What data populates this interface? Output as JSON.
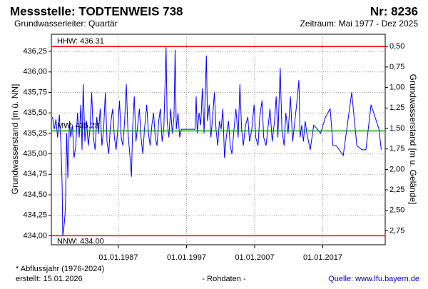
{
  "chart_data": {
    "type": "line",
    "title": "Messstelle: TODTENWEIS 738",
    "number": "Nr: 8236",
    "subtitle": "Grundwasserleiter: Quartär",
    "period": "Zeitraum: Mai 1977 - Dez 2025",
    "ylabel": "Grundwasserstand [m ü. NN]",
    "y2label": "Grundwasserstand [m u. Gelände]",
    "footnote": "* Abflussjahr (1976-2024)",
    "created": "erstellt:  15.01.2026",
    "note": "- Rohdaten -",
    "source": "Quelle:  www.lfu.bayern.de",
    "xlim": [
      "1977-03",
      "2026-03"
    ],
    "xticks": [
      {
        "value": "1987-01-01",
        "label": "01.01.1987"
      },
      {
        "value": "1997-01-01",
        "label": "01.01.1997"
      },
      {
        "value": "2007-01-01",
        "label": "01.01.2007"
      },
      {
        "value": "2017-01-01",
        "label": "01.01.2017"
      }
    ],
    "ylim": [
      433.89,
      436.46
    ],
    "yticks": [
      {
        "value": 434.0,
        "label": "434,00"
      },
      {
        "value": 434.25,
        "label": "434,25"
      },
      {
        "value": 434.5,
        "label": "434,50"
      },
      {
        "value": 434.75,
        "label": "434,75"
      },
      {
        "value": 435.0,
        "label": "435,00"
      },
      {
        "value": 435.25,
        "label": "435,25"
      },
      {
        "value": 435.5,
        "label": "435,50"
      },
      {
        "value": 435.75,
        "label": "435,75"
      },
      {
        "value": 436.0,
        "label": "436,00"
      },
      {
        "value": 436.25,
        "label": "436,25"
      }
    ],
    "y2lim": [
      2.92,
      0.35
    ],
    "y2ticks": [
      {
        "value": 0.5,
        "label": "0,50"
      },
      {
        "value": 0.75,
        "label": "0,75"
      },
      {
        "value": 1.0,
        "label": "1,00"
      },
      {
        "value": 1.25,
        "label": "1,25"
      },
      {
        "value": 1.5,
        "label": "1,50"
      },
      {
        "value": 1.75,
        "label": "1,75"
      },
      {
        "value": 2.0,
        "label": "2,00"
      },
      {
        "value": 2.25,
        "label": "2,25"
      },
      {
        "value": 2.5,
        "label": "2,50"
      },
      {
        "value": 2.75,
        "label": "2,75"
      }
    ],
    "grid": true,
    "reference_lines": [
      {
        "label": "HHW: 436.31",
        "value": 436.31,
        "color": "#ff0000"
      },
      {
        "label": "MW: 435.28",
        "value": 435.28,
        "color": "#00a000"
      },
      {
        "label": "NNW: 434.00",
        "value": 434.0,
        "color": "#ff0000"
      }
    ],
    "x": [
      "1977-05",
      "1977-08",
      "1977-11",
      "1978-02",
      "1978-05",
      "1978-08",
      "1978-10",
      "1978-11",
      "1979-01",
      "1979-03",
      "1979-04",
      "1979-05",
      "1979-06",
      "1979-08",
      "1979-09",
      "1979-11",
      "1980-01",
      "1980-04",
      "1980-07",
      "1980-10",
      "1981-01",
      "1981-04",
      "1981-07",
      "1981-09",
      "1981-11",
      "1982-02",
      "1982-05",
      "1982-08",
      "1982-11",
      "1983-02",
      "1983-05",
      "1983-08",
      "1983-11",
      "1984-02",
      "1984-05",
      "1984-08",
      "1984-11",
      "1985-02",
      "1985-05",
      "1985-08",
      "1985-11",
      "1986-03",
      "1986-06",
      "1986-09",
      "1986-12",
      "1987-03",
      "1987-06",
      "1987-09",
      "1987-12",
      "1988-03",
      "1988-06",
      "1988-09",
      "1988-12",
      "1989-02",
      "1989-05",
      "1989-08",
      "1989-11",
      "1990-02",
      "1990-05",
      "1990-08",
      "1990-11",
      "1991-03",
      "1991-06",
      "1991-09",
      "1991-12",
      "1992-03",
      "1992-06",
      "1992-09",
      "1992-12",
      "1993-03",
      "1993-06",
      "1993-09",
      "1994-01",
      "1994-03",
      "1994-06",
      "1994-09",
      "1994-12",
      "1995-03",
      "1995-05",
      "1995-07",
      "1995-10",
      "1996-01",
      "1996-04",
      "1998-04",
      "1998-06",
      "1998-08",
      "1998-11",
      "1999-02",
      "1999-05",
      "1999-08",
      "1999-12",
      "2000-02",
      "2000-05",
      "2000-08",
      "2000-11",
      "2001-02",
      "2001-05",
      "2001-08",
      "2001-11",
      "2002-02",
      "2002-05",
      "2002-08",
      "2002-11",
      "2003-03",
      "2003-06",
      "2003-09",
      "2003-12",
      "2004-04",
      "2004-08",
      "2004-11",
      "2005-02",
      "2005-05",
      "2005-09",
      "2006-01",
      "2006-04",
      "2006-08",
      "2006-12",
      "2007-03",
      "2007-07",
      "2007-10",
      "2008-02",
      "2008-05",
      "2008-09",
      "2009-01",
      "2009-04",
      "2009-08",
      "2009-12",
      "2010-03",
      "2010-06",
      "2010-10",
      "2011-01",
      "2011-05",
      "2011-08",
      "2011-12",
      "2012-04",
      "2012-08",
      "2012-11",
      "2013-03",
      "2013-07",
      "2013-09",
      "2013-12",
      "2014-03",
      "2014-06",
      "2014-09",
      "2015-03",
      "2015-09",
      "2016-04",
      "2016-09",
      "2017-06",
      "2018-02",
      "2018-07",
      "2019-01",
      "2020-01",
      "2021-04",
      "2022-01",
      "2022-10",
      "2023-05",
      "2024-02",
      "2025-04",
      "2025-08"
    ],
    "series": [
      {
        "color": "#0000ff",
        "values": [
          435.45,
          435.3,
          435.42,
          435.2,
          435.48,
          435.1,
          434.6,
          434.0,
          434.1,
          434.25,
          434.4,
          434.9,
          435.25,
          434.7,
          435.0,
          435.4,
          435.2,
          435.35,
          434.95,
          435.1,
          435.5,
          435.2,
          435.6,
          435.05,
          435.85,
          435.15,
          435.4,
          435.1,
          435.3,
          435.75,
          435.2,
          435.05,
          435.45,
          435.25,
          435.55,
          435.1,
          435.3,
          435.75,
          435.15,
          435.0,
          435.35,
          435.55,
          435.2,
          435.05,
          435.3,
          435.65,
          435.2,
          435.1,
          435.4,
          435.85,
          435.25,
          435.0,
          434.72,
          435.3,
          435.7,
          435.15,
          435.35,
          435.55,
          435.2,
          435.0,
          435.3,
          435.6,
          435.25,
          435.1,
          435.35,
          435.5,
          435.2,
          435.1,
          435.4,
          435.55,
          435.15,
          435.3,
          436.3,
          435.4,
          435.2,
          435.55,
          435.25,
          435.45,
          436.27,
          435.3,
          435.5,
          435.2,
          435.3,
          435.3,
          435.7,
          435.25,
          435.5,
          435.35,
          435.8,
          435.25,
          436.2,
          435.4,
          435.6,
          435.2,
          435.45,
          435.75,
          435.3,
          435.1,
          435.4,
          435.3,
          435.55,
          434.95,
          435.2,
          435.4,
          435.1,
          435.0,
          435.25,
          435.55,
          435.2,
          435.85,
          435.3,
          435.1,
          435.35,
          435.45,
          435.15,
          435.3,
          435.6,
          435.2,
          435.1,
          435.45,
          435.65,
          435.2,
          435.1,
          435.35,
          435.55,
          435.15,
          435.4,
          435.7,
          435.2,
          436.05,
          435.3,
          435.1,
          435.5,
          435.25,
          435.7,
          435.15,
          435.35,
          435.6,
          435.9,
          435.2,
          435.35,
          435.15,
          435.4,
          435.25,
          435.05,
          435.35,
          435.3,
          435.25,
          435.45,
          435.55,
          435.1,
          435.1,
          434.98,
          435.75,
          435.1,
          435.05,
          435.05,
          435.6,
          435.3,
          435.05
        ]
      }
    ]
  }
}
